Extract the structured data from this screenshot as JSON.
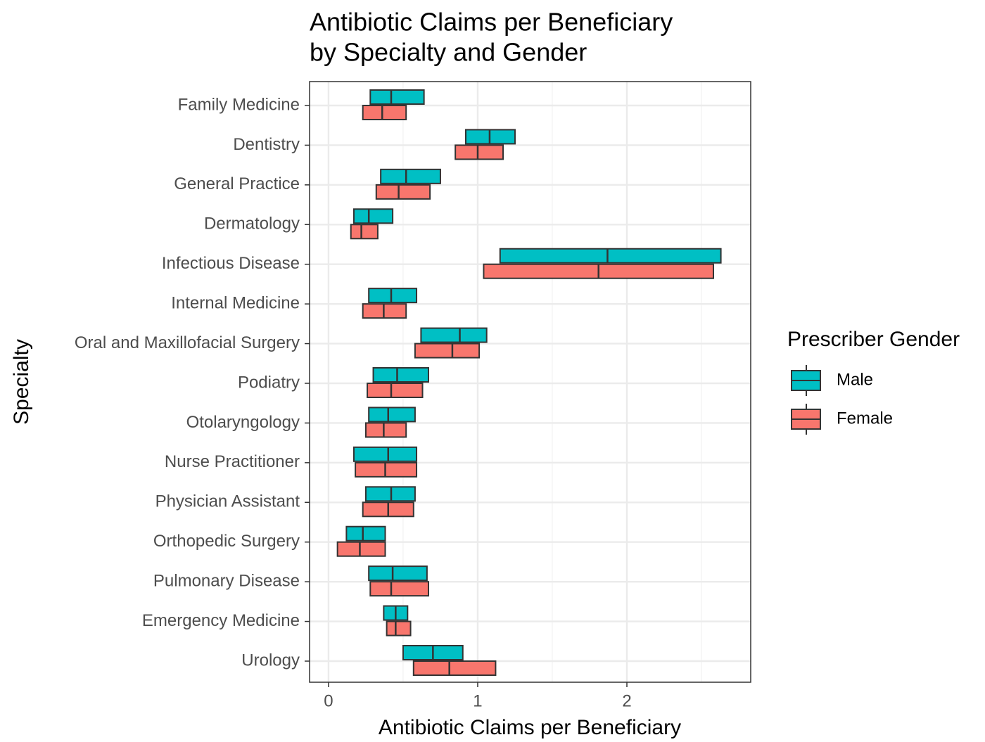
{
  "chart_data": {
    "type": "box",
    "title": [
      "Antibiotic Claims per Beneficiary",
      "by Specialty and Gender"
    ],
    "x_label": "Antibiotic Claims per Beneficiary",
    "y_label": "Specialty",
    "legend_title": "Prescriber Gender",
    "legend_position": "right",
    "categories": [
      "Family Medicine",
      "Dentistry",
      "General Practice",
      "Dermatology",
      "Infectious Disease",
      "Internal Medicine",
      "Oral and Maxillofacial Surgery",
      "Podiatry",
      "Otolaryngology",
      "Nurse Practitioner",
      "Physician Assistant",
      "Orthopedic Surgery",
      "Pulmonary Disease",
      "Emergency Medicine",
      "Urology"
    ],
    "series": [
      {
        "name": "Male",
        "color": "#00bfc4",
        "q1": [
          0.28,
          0.92,
          0.35,
          0.17,
          1.15,
          0.27,
          0.62,
          0.3,
          0.27,
          0.17,
          0.25,
          0.12,
          0.27,
          0.37,
          0.5
        ],
        "median": [
          0.42,
          1.08,
          0.52,
          0.27,
          1.87,
          0.42,
          0.88,
          0.46,
          0.4,
          0.4,
          0.42,
          0.23,
          0.43,
          0.45,
          0.7
        ],
        "q3": [
          0.64,
          1.25,
          0.75,
          0.43,
          2.63,
          0.59,
          1.06,
          0.67,
          0.58,
          0.59,
          0.58,
          0.38,
          0.66,
          0.53,
          0.9
        ]
      },
      {
        "name": "Female",
        "color": "#f8766d",
        "q1": [
          0.23,
          0.85,
          0.32,
          0.15,
          1.04,
          0.23,
          0.58,
          0.26,
          0.25,
          0.18,
          0.23,
          0.06,
          0.28,
          0.39,
          0.57
        ],
        "median": [
          0.36,
          1.0,
          0.47,
          0.22,
          1.81,
          0.37,
          0.83,
          0.42,
          0.37,
          0.38,
          0.4,
          0.21,
          0.42,
          0.45,
          0.81
        ],
        "q3": [
          0.52,
          1.17,
          0.68,
          0.33,
          2.58,
          0.52,
          1.01,
          0.63,
          0.52,
          0.59,
          0.57,
          0.38,
          0.67,
          0.55,
          1.12
        ]
      }
    ],
    "xlim": [
      -0.127,
      2.83
    ],
    "xticks": [
      0,
      1,
      2
    ],
    "xminor": [
      0.5,
      1.5,
      2.5
    ],
    "grid": true
  }
}
